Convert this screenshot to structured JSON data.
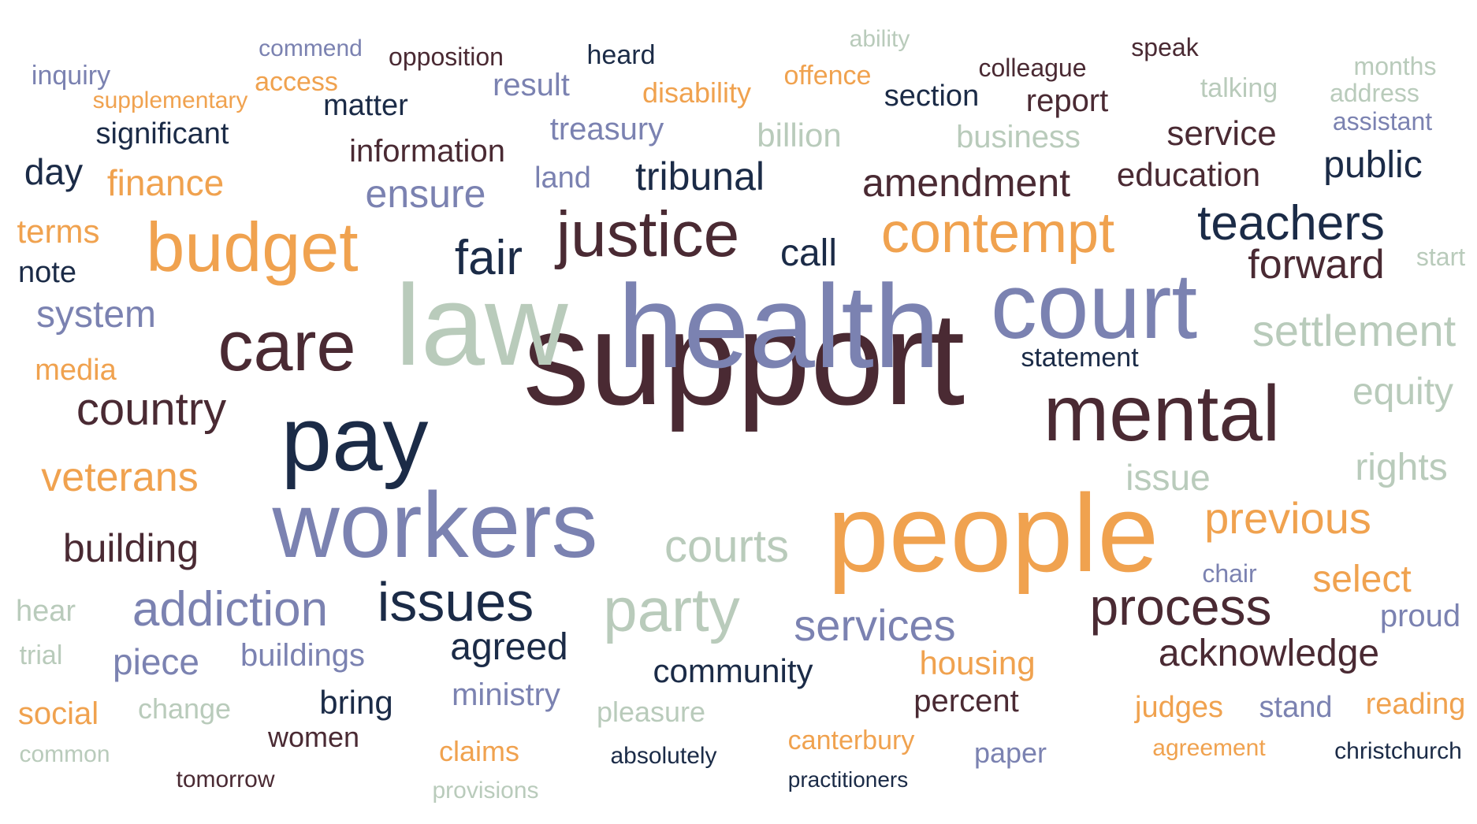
{
  "words": [
    {
      "text": "support",
      "c": 4
    },
    {
      "text": "health",
      "c": 2
    },
    {
      "text": "law",
      "c": 3
    },
    {
      "text": "people",
      "c": 0
    },
    {
      "text": "workers",
      "c": 2
    },
    {
      "text": "court",
      "c": 2
    },
    {
      "text": "pay",
      "c": 1
    },
    {
      "text": "mental",
      "c": 4
    },
    {
      "text": "care",
      "c": 4
    },
    {
      "text": "budget",
      "c": 0
    },
    {
      "text": "justice",
      "c": 4
    },
    {
      "text": "contempt",
      "c": 0
    },
    {
      "text": "party",
      "c": 3
    },
    {
      "text": "issues",
      "c": 1
    },
    {
      "text": "process",
      "c": 4
    },
    {
      "text": "teachers",
      "c": 1
    },
    {
      "text": "addiction",
      "c": 2
    },
    {
      "text": "courts",
      "c": 3
    },
    {
      "text": "settlement",
      "c": 3
    },
    {
      "text": "fair",
      "c": 1
    },
    {
      "text": "forward",
      "c": 4
    },
    {
      "text": "previous",
      "c": 0
    },
    {
      "text": "country",
      "c": 4
    },
    {
      "text": "services",
      "c": 2
    },
    {
      "text": "veterans",
      "c": 0
    },
    {
      "text": "building",
      "c": 4
    },
    {
      "text": "amendment",
      "c": 4
    },
    {
      "text": "acknowledge",
      "c": 4
    },
    {
      "text": "system",
      "c": 2
    },
    {
      "text": "rights",
      "c": 3
    },
    {
      "text": "equity",
      "c": 3
    },
    {
      "text": "ensure",
      "c": 2
    },
    {
      "text": "tribunal",
      "c": 1
    },
    {
      "text": "agreed",
      "c": 1
    },
    {
      "text": "select",
      "c": 0
    },
    {
      "text": "public",
      "c": 1
    },
    {
      "text": "finance",
      "c": 0
    },
    {
      "text": "piece",
      "c": 2
    },
    {
      "text": "call",
      "c": 1
    },
    {
      "text": "issue",
      "c": 3
    },
    {
      "text": "housing",
      "c": 0
    },
    {
      "text": "service",
      "c": 4
    },
    {
      "text": "day",
      "c": 1
    },
    {
      "text": "education",
      "c": 4
    },
    {
      "text": "community",
      "c": 1
    },
    {
      "text": "information",
      "c": 4
    },
    {
      "text": "billion",
      "c": 3
    },
    {
      "text": "bring",
      "c": 1
    },
    {
      "text": "business",
      "c": 3
    },
    {
      "text": "significant",
      "c": 1
    },
    {
      "text": "terms",
      "c": 0
    },
    {
      "text": "report",
      "c": 4
    },
    {
      "text": "treasury",
      "c": 2
    },
    {
      "text": "ministry",
      "c": 2
    },
    {
      "text": "buildings",
      "c": 2
    },
    {
      "text": "section",
      "c": 1
    },
    {
      "text": "matter",
      "c": 1
    },
    {
      "text": "percent",
      "c": 4
    },
    {
      "text": "social",
      "c": 0
    },
    {
      "text": "result",
      "c": 2
    },
    {
      "text": "proud",
      "c": 2
    },
    {
      "text": "judges",
      "c": 0
    },
    {
      "text": "stand",
      "c": 2
    },
    {
      "text": "reading",
      "c": 0
    },
    {
      "text": "note",
      "c": 1
    },
    {
      "text": "media",
      "c": 0
    },
    {
      "text": "land",
      "c": 2
    },
    {
      "text": "hear",
      "c": 3
    },
    {
      "text": "disability",
      "c": 0
    },
    {
      "text": "claims",
      "c": 0
    },
    {
      "text": "women",
      "c": 4
    },
    {
      "text": "paper",
      "c": 2
    },
    {
      "text": "change",
      "c": 3
    },
    {
      "text": "pleasure",
      "c": 3
    },
    {
      "text": "canterbury",
      "c": 0
    },
    {
      "text": "statement",
      "c": 1
    },
    {
      "text": "inquiry",
      "c": 2
    },
    {
      "text": "talking",
      "c": 3
    },
    {
      "text": "heard",
      "c": 1
    },
    {
      "text": "offence",
      "c": 0
    },
    {
      "text": "access",
      "c": 0
    },
    {
      "text": "trial",
      "c": 3
    },
    {
      "text": "months",
      "c": 3
    },
    {
      "text": "address",
      "c": 3
    },
    {
      "text": "assistant",
      "c": 2
    },
    {
      "text": "start",
      "c": 3
    },
    {
      "text": "colleague",
      "c": 4
    },
    {
      "text": "speak",
      "c": 4
    },
    {
      "text": "opposition",
      "c": 4
    },
    {
      "text": "chair",
      "c": 2
    },
    {
      "text": "supplementary",
      "c": 0
    },
    {
      "text": "tomorrow",
      "c": 4
    },
    {
      "text": "absolutely",
      "c": 1
    },
    {
      "text": "common",
      "c": 3
    },
    {
      "text": "christchurch",
      "c": 1
    },
    {
      "text": "agreement",
      "c": 0
    },
    {
      "text": "commend",
      "c": 2
    },
    {
      "text": "ability",
      "c": 3
    },
    {
      "text": "practitioners",
      "c": 1
    },
    {
      "text": "provisions",
      "c": 3
    }
  ]
}
